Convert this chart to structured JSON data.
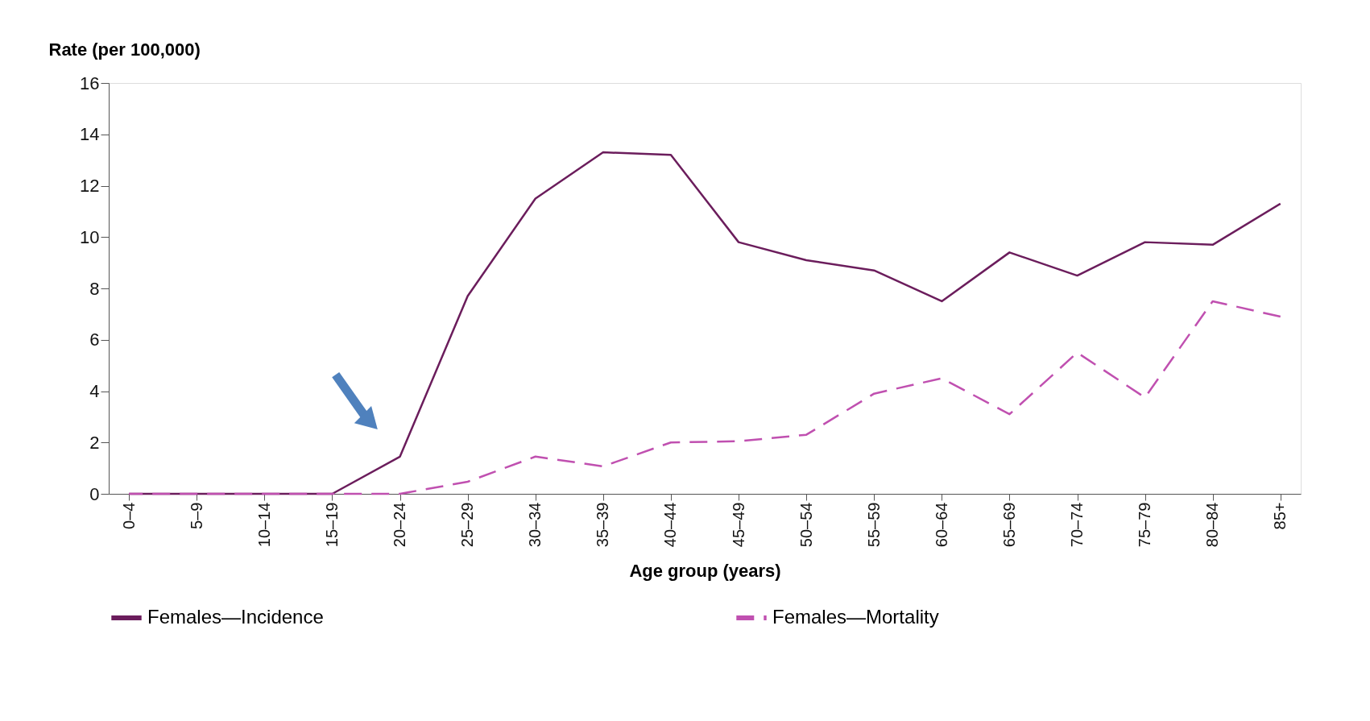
{
  "chart_data": {
    "type": "line",
    "xlabel": "Age group (years)",
    "ylabel": "Rate (per 100,000)",
    "categories": [
      "0–4",
      "5–9",
      "10–14",
      "15–19",
      "20–24",
      "25–29",
      "30–34",
      "35–39",
      "40–44",
      "45–49",
      "50–54",
      "55–59",
      "60–64",
      "65–69",
      "70–74",
      "75–79",
      "80–84",
      "85+"
    ],
    "series": [
      {
        "name": "Females—Incidence",
        "color": "#6b1d5c",
        "line_style": "solid",
        "values": [
          0,
          0,
          0,
          0,
          1.45,
          7.7,
          11.5,
          13.3,
          13.2,
          9.8,
          9.1,
          8.7,
          7.5,
          9.4,
          8.5,
          9.8,
          9.7,
          11.3
        ]
      },
      {
        "name": "Females—Mortality",
        "color": "#c050b0",
        "line_style": "dashed",
        "values": [
          0,
          0,
          0,
          0,
          0,
          0.47,
          1.45,
          1.07,
          2.0,
          2.05,
          2.3,
          3.9,
          4.5,
          3.1,
          5.5,
          3.75,
          7.5,
          6.9
        ]
      }
    ],
    "ylim": [
      0,
      16
    ],
    "yticks": [
      0,
      2,
      4,
      6,
      8,
      10,
      12,
      14,
      16
    ],
    "grid": false,
    "legend": "bottom",
    "marker": "none"
  }
}
